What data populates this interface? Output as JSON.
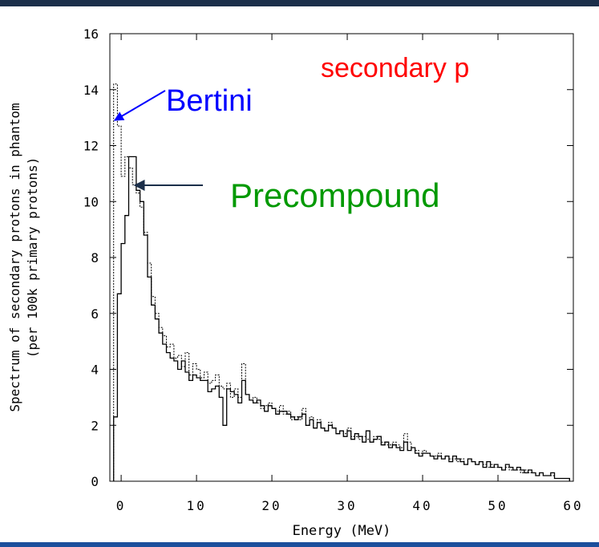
{
  "chart_data": {
    "type": "line",
    "title": "",
    "xlabel": "Energy (MeV)",
    "ylabel": "Spectrum of secondary protons in phantom",
    "ylabel2": "(per 100k primary protons)",
    "xlim": [
      -1.5,
      60
    ],
    "ylim": [
      0,
      16
    ],
    "xticks": [
      "0",
      "10",
      "20",
      "30",
      "40",
      "50",
      "60"
    ],
    "yticks": [
      "0",
      "2",
      "4",
      "6",
      "8",
      "10",
      "12",
      "14",
      "16"
    ],
    "grid": false,
    "annotations": {
      "header": "secondary p",
      "header_color": "#ff0000",
      "bertini": "Bertini",
      "bertini_color": "#0000ff",
      "precompound": "Precompound",
      "precompound_color": "#009900"
    },
    "series": [
      {
        "name": "Precompound",
        "style": "solid",
        "color": "#000000",
        "bin_width": 0.5,
        "x_start": -1.0,
        "values": [
          2.3,
          6.7,
          8.5,
          9.5,
          11.6,
          11.6,
          10.4,
          10.0,
          8.8,
          7.3,
          6.3,
          5.8,
          5.3,
          4.9,
          4.6,
          4.4,
          4.3,
          4.0,
          4.3,
          3.9,
          3.6,
          3.8,
          3.7,
          3.6,
          3.6,
          3.2,
          3.3,
          3.4,
          3.0,
          2.0,
          3.3,
          3.2,
          3.1,
          2.8,
          3.6,
          3.1,
          2.9,
          2.8,
          2.9,
          2.7,
          2.5,
          2.7,
          2.6,
          2.4,
          2.5,
          2.5,
          2.4,
          2.3,
          2.2,
          2.3,
          2.4,
          2.0,
          2.2,
          1.9,
          2.1,
          1.9,
          1.8,
          2.0,
          1.9,
          1.7,
          1.8,
          1.6,
          1.8,
          1.5,
          1.7,
          1.6,
          1.4,
          1.8,
          1.4,
          1.5,
          1.6,
          1.3,
          1.4,
          1.2,
          1.3,
          1.2,
          1.1,
          1.4,
          1.1,
          1.2,
          1.0,
          0.9,
          1.0,
          1.0,
          0.9,
          0.8,
          0.9,
          0.8,
          0.9,
          0.7,
          0.9,
          0.8,
          0.7,
          0.6,
          0.8,
          0.7,
          0.6,
          0.7,
          0.5,
          0.7,
          0.5,
          0.6,
          0.5,
          0.4,
          0.6,
          0.5,
          0.4,
          0.5,
          0.4,
          0.3,
          0.4,
          0.3,
          0.2,
          0.3,
          0.2,
          0.2,
          0.3,
          0.1,
          0.1,
          0.1,
          0.1
        ]
      },
      {
        "name": "Bertini",
        "style": "dotted",
        "color": "#000000",
        "bin_width": 0.5,
        "x_start": -1.0,
        "values": [
          14.2,
          12.7,
          10.9,
          11.6,
          11.2,
          10.6,
          10.3,
          9.8,
          8.9,
          7.8,
          6.6,
          6.0,
          5.5,
          5.2,
          4.8,
          4.9,
          4.4,
          4.5,
          4.1,
          4.6,
          3.8,
          4.2,
          4.0,
          3.7,
          3.9,
          3.5,
          3.6,
          3.8,
          3.4,
          3.3,
          3.5,
          3.0,
          3.3,
          3.0,
          4.2,
          3.1,
          2.9,
          3.0,
          2.8,
          2.6,
          2.7,
          2.8,
          2.6,
          2.5,
          2.7,
          2.4,
          2.5,
          2.2,
          2.3,
          2.2,
          2.6,
          2.0,
          2.3,
          1.9,
          2.2,
          1.9,
          1.8,
          2.1,
          1.9,
          1.7,
          1.8,
          1.7,
          1.9,
          1.6,
          1.6,
          1.5,
          1.6,
          1.5,
          1.4,
          1.6,
          1.5,
          1.4,
          1.3,
          1.3,
          1.4,
          1.3,
          1.2,
          1.7,
          1.4,
          1.2,
          1.1,
          1.0,
          1.1,
          1.0,
          0.9,
          0.9,
          1.0,
          0.8,
          0.9,
          0.8,
          0.8,
          0.7,
          0.8,
          0.6,
          0.8,
          0.7,
          0.6,
          0.7,
          0.6,
          0.5,
          0.6,
          0.5,
          0.5,
          0.4,
          0.5,
          0.4,
          0.4,
          0.4,
          0.3,
          0.4,
          0.3,
          0.3,
          0.2,
          0.3,
          0.2,
          0.2,
          0.2,
          0.1,
          0.1,
          0.1,
          0.1
        ]
      }
    ]
  }
}
